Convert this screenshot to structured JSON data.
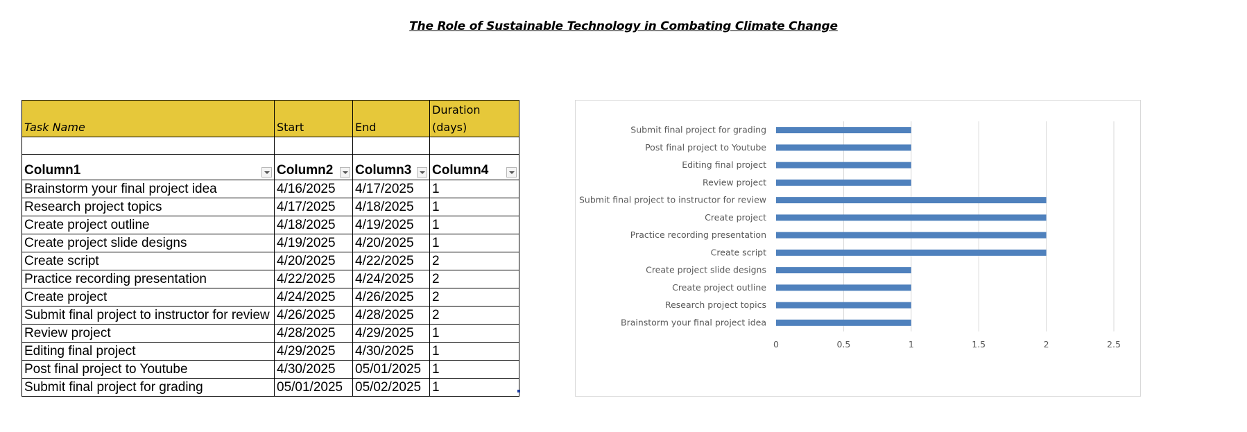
{
  "document": {
    "title": "The Role of Sustainable Technology in Combating Climate Change"
  },
  "table": {
    "header": {
      "task_name": "Task Name",
      "start": "Start",
      "end": "End",
      "duration": "Duration (days)"
    },
    "columns": [
      "Column1",
      "Column2",
      "Column3",
      "Column4"
    ],
    "rows": [
      {
        "task": "Brainstorm your final project idea",
        "start": "4/16/2025",
        "end": "4/17/2025",
        "duration": "1"
      },
      {
        "task": "Research project topics",
        "start": "4/17/2025",
        "end": "4/18/2025",
        "duration": "1"
      },
      {
        "task": "Create project outline",
        "start": "4/18/2025",
        "end": "4/19/2025",
        "duration": "1"
      },
      {
        "task": "Create project slide designs",
        "start": "4/19/2025",
        "end": "4/20/2025",
        "duration": "1"
      },
      {
        "task": "Create script",
        "start": "4/20/2025",
        "end": "4/22/2025",
        "duration": "2"
      },
      {
        "task": "Practice recording presentation",
        "start": "4/22/2025",
        "end": "4/24/2025",
        "duration": "2"
      },
      {
        "task": "Create project",
        "start": "4/24/2025",
        "end": "4/26/2025",
        "duration": "2"
      },
      {
        "task": "Submit final project to instructor for review",
        "start": "4/26/2025",
        "end": "4/28/2025",
        "duration": "2"
      },
      {
        "task": "Review project",
        "start": "4/28/2025",
        "end": "4/29/2025",
        "duration": "1"
      },
      {
        "task": "Editing final project",
        "start": "4/29/2025",
        "end": "4/30/2025",
        "duration": "1"
      },
      {
        "task": "Post final project to Youtube",
        "start": "4/30/2025",
        "end": "05/01/2025",
        "duration": "1"
      },
      {
        "task": "Submit final project for grading",
        "start": "05/01/2025",
        "end": "05/02/2025",
        "duration": "1"
      }
    ]
  },
  "colors": {
    "header_fill": "#e6c83a",
    "bar": "#4f81bd",
    "gridline": "#d9d9d9",
    "axis_text": "#595959"
  },
  "chart_data": {
    "type": "bar",
    "orientation": "horizontal",
    "categories": [
      "Brainstorm your final project idea",
      "Research project topics",
      "Create project outline",
      "Create project slide designs",
      "Create script",
      "Practice recording presentation",
      "Create project",
      "Submit final project to instructor for review",
      "Review project",
      "Editing final project",
      "Post final project to Youtube",
      "Submit final project for grading"
    ],
    "values": [
      1,
      1,
      1,
      1,
      2,
      2,
      2,
      2,
      1,
      1,
      1,
      1
    ],
    "xlim": [
      0,
      2.5
    ],
    "xticks": [
      "0",
      "0.5",
      "1",
      "1.5",
      "2",
      "2.5"
    ],
    "title": "",
    "xlabel": "",
    "ylabel": "",
    "grid": "vertical",
    "legend": "none"
  }
}
